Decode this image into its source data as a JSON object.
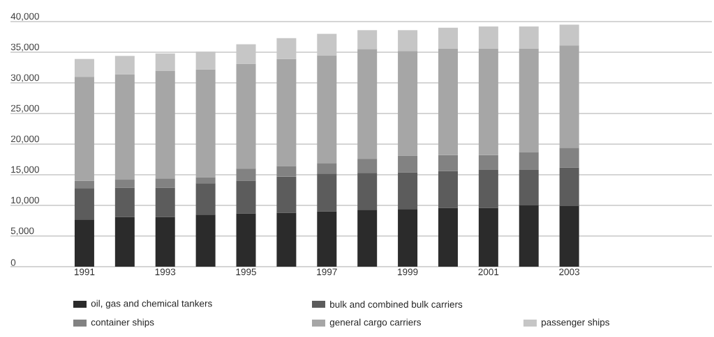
{
  "chart_data": {
    "type": "bar",
    "stacked": true,
    "grid": "y",
    "legend": "bottom",
    "categories": [
      "1991",
      null,
      "1993",
      null,
      "1995",
      null,
      "1997",
      null,
      "1999",
      null,
      "2001",
      null,
      "2003"
    ],
    "series": [
      {
        "name": "oil, gas and chemical tankers",
        "color": "#2b2b2b",
        "values": [
          7700,
          8100,
          8100,
          8500,
          8700,
          8800,
          9000,
          9300,
          9400,
          9600,
          9600,
          10000,
          9900
        ]
      },
      {
        "name": "bulk and combined bulk carriers",
        "color": "#5c5c5c",
        "values": [
          5100,
          4800,
          4800,
          5100,
          5300,
          5900,
          6200,
          6000,
          6000,
          6000,
          6200,
          5800,
          6300
        ]
      },
      {
        "name": "container ships",
        "color": "#828282",
        "values": [
          1200,
          1300,
          1500,
          1000,
          2000,
          1700,
          1700,
          2300,
          2700,
          2600,
          2400,
          2900,
          3200
        ]
      },
      {
        "name": "general cargo carriers",
        "color": "#a6a6a6",
        "values": [
          17000,
          17200,
          17600,
          17600,
          17100,
          17500,
          17600,
          17900,
          17100,
          17400,
          17400,
          16900,
          16700
        ]
      },
      {
        "name": "passenger ships",
        "color": "#c6c6c6",
        "values": [
          2900,
          3000,
          2800,
          2900,
          3200,
          3400,
          3500,
          3100,
          3400,
          3400,
          3600,
          3600,
          3400
        ]
      }
    ],
    "ylim": [
      0,
      40000
    ],
    "yticks": [
      0,
      {
        "value": 5000,
        "label": "5,000"
      },
      {
        "value": 10000,
        "label": "10,000"
      },
      {
        "value": 15000,
        "label": "15,000"
      },
      {
        "value": 20000,
        "label": "20,000"
      },
      {
        "value": 25000,
        "label": "25,000"
      },
      {
        "value": 30000,
        "label": "30,000"
      },
      {
        "value": 35000,
        "label": "35,000"
      },
      {
        "value": 40000,
        "label": "40,000"
      }
    ]
  }
}
